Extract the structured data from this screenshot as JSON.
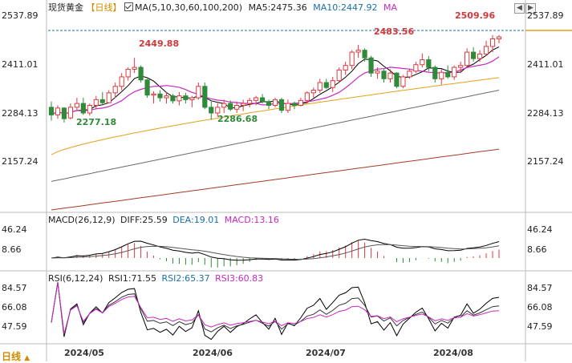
{
  "header": {
    "instrument": "现货黄金",
    "period_tag": "【日线】",
    "ma_params": "MA(5,10,30,60,100,200)",
    "ma5": "MA5:2475.36",
    "ma10": "MA10:2447.92",
    "ma_more": "MA"
  },
  "macd_header": {
    "params": "MACD(26,12,9)",
    "diff": "DIFF:25.59",
    "dea": "DEA:19.01",
    "macd": "MACD:13.16"
  },
  "rsi_header": {
    "params": "RSI(6,12,24)",
    "rsi1": "RSI1:71.55",
    "rsi2": "RSI2:65.37",
    "rsi3": "RSI3:60.83"
  },
  "price_axis": [
    "2537.89",
    "2411.01",
    "2284.13",
    "2157.24"
  ],
  "macd_axis": [
    "46.24",
    "8.66"
  ],
  "rsi_axis": [
    "84.57",
    "66.08",
    "47.59"
  ],
  "dates": [
    "2024/05",
    "2024/06",
    "2024/07",
    "2024/08"
  ],
  "period_button": "日线",
  "annotations": {
    "high_jun": "2449.88",
    "low_may": "2277.18",
    "low_jun": "2286.68",
    "high_jul": "2483.56",
    "high_aug": "2509.96"
  },
  "colors": {
    "up": "#e0393e",
    "down": "#2f8a3a",
    "ma5": "#000000",
    "ma10": "#c728c2",
    "ma30": "#e3a11a",
    "ma60": "#6b6b6b",
    "ma100": "#a53a28",
    "last_price": "#1b6fa8",
    "rsi1": "#000000",
    "rsi2": "#333333",
    "rsi3": "#c728c2"
  },
  "chart_data": {
    "type": "candlestick",
    "y_range": [
      2050,
      2560
    ],
    "candles": [
      {
        "o": 2320,
        "h": 2335,
        "l": 2285,
        "c": 2300
      },
      {
        "o": 2300,
        "h": 2325,
        "l": 2290,
        "c": 2318
      },
      {
        "o": 2318,
        "h": 2320,
        "l": 2280,
        "c": 2290
      },
      {
        "o": 2292,
        "h": 2330,
        "l": 2288,
        "c": 2320
      },
      {
        "o": 2320,
        "h": 2345,
        "l": 2310,
        "c": 2330
      },
      {
        "o": 2330,
        "h": 2345,
        "l": 2300,
        "c": 2305
      },
      {
        "o": 2305,
        "h": 2330,
        "l": 2298,
        "c": 2325
      },
      {
        "o": 2325,
        "h": 2350,
        "l": 2315,
        "c": 2340
      },
      {
        "o": 2340,
        "h": 2360,
        "l": 2325,
        "c": 2332
      },
      {
        "o": 2332,
        "h": 2365,
        "l": 2330,
        "c": 2358
      },
      {
        "o": 2358,
        "h": 2385,
        "l": 2345,
        "c": 2375
      },
      {
        "o": 2375,
        "h": 2410,
        "l": 2365,
        "c": 2400
      },
      {
        "o": 2400,
        "h": 2425,
        "l": 2390,
        "c": 2420
      },
      {
        "o": 2420,
        "h": 2450,
        "l": 2410,
        "c": 2425
      },
      {
        "o": 2425,
        "h": 2430,
        "l": 2385,
        "c": 2392
      },
      {
        "o": 2392,
        "h": 2395,
        "l": 2345,
        "c": 2352
      },
      {
        "o": 2352,
        "h": 2362,
        "l": 2330,
        "c": 2355
      },
      {
        "o": 2355,
        "h": 2365,
        "l": 2335,
        "c": 2345
      },
      {
        "o": 2345,
        "h": 2360,
        "l": 2330,
        "c": 2350
      },
      {
        "o": 2350,
        "h": 2355,
        "l": 2330,
        "c": 2337
      },
      {
        "o": 2337,
        "h": 2360,
        "l": 2325,
        "c": 2350
      },
      {
        "o": 2350,
        "h": 2358,
        "l": 2330,
        "c": 2340
      },
      {
        "o": 2340,
        "h": 2350,
        "l": 2320,
        "c": 2345
      },
      {
        "o": 2345,
        "h": 2385,
        "l": 2340,
        "c": 2375
      },
      {
        "o": 2375,
        "h": 2385,
        "l": 2315,
        "c": 2320
      },
      {
        "o": 2320,
        "h": 2335,
        "l": 2287,
        "c": 2305
      },
      {
        "o": 2305,
        "h": 2330,
        "l": 2295,
        "c": 2320
      },
      {
        "o": 2320,
        "h": 2340,
        "l": 2305,
        "c": 2330
      },
      {
        "o": 2330,
        "h": 2338,
        "l": 2310,
        "c": 2315
      },
      {
        "o": 2315,
        "h": 2335,
        "l": 2305,
        "c": 2325
      },
      {
        "o": 2325,
        "h": 2340,
        "l": 2310,
        "c": 2330
      },
      {
        "o": 2330,
        "h": 2345,
        "l": 2320,
        "c": 2338
      },
      {
        "o": 2338,
        "h": 2350,
        "l": 2325,
        "c": 2345
      },
      {
        "o": 2345,
        "h": 2355,
        "l": 2330,
        "c": 2335
      },
      {
        "o": 2335,
        "h": 2340,
        "l": 2315,
        "c": 2325
      },
      {
        "o": 2325,
        "h": 2345,
        "l": 2320,
        "c": 2340
      },
      {
        "o": 2340,
        "h": 2345,
        "l": 2305,
        "c": 2312
      },
      {
        "o": 2312,
        "h": 2340,
        "l": 2305,
        "c": 2330
      },
      {
        "o": 2330,
        "h": 2335,
        "l": 2315,
        "c": 2325
      },
      {
        "o": 2325,
        "h": 2345,
        "l": 2322,
        "c": 2338
      },
      {
        "o": 2338,
        "h": 2362,
        "l": 2330,
        "c": 2358
      },
      {
        "o": 2358,
        "h": 2372,
        "l": 2345,
        "c": 2365
      },
      {
        "o": 2365,
        "h": 2395,
        "l": 2358,
        "c": 2385
      },
      {
        "o": 2385,
        "h": 2395,
        "l": 2368,
        "c": 2372
      },
      {
        "o": 2372,
        "h": 2400,
        "l": 2360,
        "c": 2390
      },
      {
        "o": 2390,
        "h": 2425,
        "l": 2385,
        "c": 2418
      },
      {
        "o": 2418,
        "h": 2440,
        "l": 2405,
        "c": 2430
      },
      {
        "o": 2430,
        "h": 2470,
        "l": 2420,
        "c": 2465
      },
      {
        "o": 2465,
        "h": 2484,
        "l": 2450,
        "c": 2470
      },
      {
        "o": 2470,
        "h": 2475,
        "l": 2440,
        "c": 2450
      },
      {
        "o": 2450,
        "h": 2455,
        "l": 2400,
        "c": 2410
      },
      {
        "o": 2410,
        "h": 2425,
        "l": 2395,
        "c": 2415
      },
      {
        "o": 2415,
        "h": 2420,
        "l": 2385,
        "c": 2395
      },
      {
        "o": 2395,
        "h": 2420,
        "l": 2385,
        "c": 2410
      },
      {
        "o": 2410,
        "h": 2412,
        "l": 2370,
        "c": 2375
      },
      {
        "o": 2375,
        "h": 2405,
        "l": 2370,
        "c": 2400
      },
      {
        "o": 2400,
        "h": 2420,
        "l": 2395,
        "c": 2415
      },
      {
        "o": 2415,
        "h": 2440,
        "l": 2410,
        "c": 2432
      },
      {
        "o": 2432,
        "h": 2462,
        "l": 2425,
        "c": 2445
      },
      {
        "o": 2445,
        "h": 2455,
        "l": 2415,
        "c": 2425
      },
      {
        "o": 2425,
        "h": 2430,
        "l": 2385,
        "c": 2395
      },
      {
        "o": 2395,
        "h": 2420,
        "l": 2380,
        "c": 2412
      },
      {
        "o": 2412,
        "h": 2430,
        "l": 2395,
        "c": 2400
      },
      {
        "o": 2400,
        "h": 2430,
        "l": 2392,
        "c": 2425
      },
      {
        "o": 2425,
        "h": 2440,
        "l": 2410,
        "c": 2430
      },
      {
        "o": 2430,
        "h": 2475,
        "l": 2425,
        "c": 2465
      },
      {
        "o": 2465,
        "h": 2478,
        "l": 2440,
        "c": 2448
      },
      {
        "o": 2448,
        "h": 2470,
        "l": 2440,
        "c": 2460
      },
      {
        "o": 2460,
        "h": 2495,
        "l": 2455,
        "c": 2480
      },
      {
        "o": 2480,
        "h": 2510,
        "l": 2465,
        "c": 2500
      },
      {
        "o": 2500,
        "h": 2510,
        "l": 2488,
        "c": 2505
      }
    ],
    "ma_lines": [
      {
        "name": "MA5",
        "start": 2300,
        "end": 2480
      },
      {
        "name": "MA10",
        "start": 2305,
        "end": 2450
      },
      {
        "name": "MA30",
        "start": 2195,
        "end": 2398
      },
      {
        "name": "MA60",
        "start": 2125,
        "end": 2365
      },
      {
        "name": "MA100",
        "start": 2050,
        "end": 2210
      }
    ],
    "macd": {
      "y_range": [
        -15,
        50
      ],
      "diff_end": 25.59,
      "dea_end": 19.01,
      "macd_end": 13.16
    },
    "rsi": {
      "y_range": [
        30,
        95
      ],
      "rsi1_end": 71.55,
      "rsi2_end": 65.37,
      "rsi3_end": 60.83
    }
  }
}
